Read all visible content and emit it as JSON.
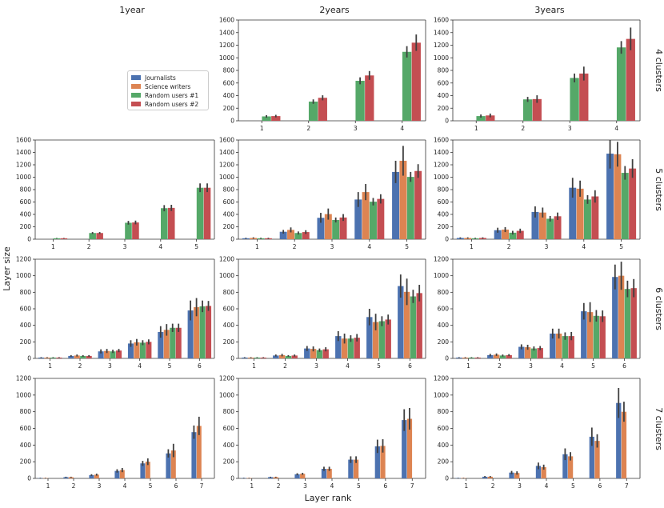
{
  "figure": {
    "xlabel": "Layer rank",
    "ylabel": "Layer size",
    "column_titles": [
      "1year",
      "2years",
      "3years"
    ],
    "row_titles": [
      "4 clusters",
      "5 clusters",
      "6 clusters",
      "7 clusters"
    ]
  },
  "legend": {
    "entries": [
      {
        "label": "Journalists",
        "color": "#4c72b0"
      },
      {
        "label": "Science writers",
        "color": "#dd8452"
      },
      {
        "label": "Random users #1",
        "color": "#55a868"
      },
      {
        "label": "Random users #2",
        "color": "#c44e52"
      }
    ]
  },
  "chart_data": [
    {
      "type": "bar",
      "row_title": "4 clusters",
      "col_title": "2years",
      "categories": [
        "1",
        "2",
        "3",
        "4"
      ],
      "ylim": [
        0,
        1600
      ],
      "yticks": [
        0,
        200,
        400,
        600,
        800,
        1000,
        1200,
        1400,
        1600
      ],
      "series": [
        {
          "name": "Random users #1",
          "values": [
            70,
            305,
            635,
            1095
          ],
          "err": [
            20,
            35,
            55,
            90
          ]
        },
        {
          "name": "Random users #2",
          "values": [
            75,
            365,
            720,
            1240
          ],
          "err": [
            20,
            40,
            70,
            130
          ]
        }
      ]
    },
    {
      "type": "bar",
      "row_title": "4 clusters",
      "col_title": "3years",
      "categories": [
        "1",
        "2",
        "3",
        "4"
      ],
      "ylim": [
        0,
        1600
      ],
      "yticks": [
        0,
        200,
        400,
        600,
        800,
        1000,
        1200,
        1400,
        1600
      ],
      "series": [
        {
          "name": "Random users #1",
          "values": [
            75,
            340,
            680,
            1165
          ],
          "err": [
            25,
            40,
            70,
            100
          ]
        },
        {
          "name": "Random users #2",
          "values": [
            85,
            345,
            750,
            1300
          ],
          "err": [
            30,
            60,
            110,
            180
          ]
        }
      ]
    },
    {
      "type": "bar",
      "row_title": "5 clusters",
      "col_title": "1year",
      "categories": [
        "1",
        "2",
        "3",
        "4",
        "5"
      ],
      "ylim": [
        0,
        1600
      ],
      "yticks": [
        0,
        200,
        400,
        600,
        800,
        1000,
        1200,
        1400,
        1600
      ],
      "series": [
        {
          "name": "Random users #1",
          "values": [
            15,
            100,
            265,
            500,
            830
          ],
          "err": [
            5,
            15,
            30,
            50,
            70
          ]
        },
        {
          "name": "Random users #2",
          "values": [
            15,
            100,
            270,
            505,
            830
          ],
          "err": [
            5,
            15,
            30,
            50,
            70
          ]
        }
      ]
    },
    {
      "type": "bar",
      "row_title": "5 clusters",
      "col_title": "2years",
      "categories": [
        "1",
        "2",
        "3",
        "4",
        "5"
      ],
      "ylim": [
        0,
        1600
      ],
      "yticks": [
        0,
        200,
        400,
        600,
        800,
        1000,
        1200,
        1400,
        1600
      ],
      "series": [
        {
          "name": "Journalists",
          "values": [
            15,
            120,
            345,
            640,
            1085
          ],
          "err": [
            8,
            30,
            80,
            120,
            180
          ]
        },
        {
          "name": "Science writers",
          "values": [
            20,
            150,
            405,
            760,
            1265
          ],
          "err": [
            10,
            40,
            90,
            130,
            240
          ]
        },
        {
          "name": "Random users #1",
          "values": [
            15,
            100,
            310,
            605,
            1005
          ],
          "err": [
            8,
            25,
            40,
            60,
            80
          ]
        },
        {
          "name": "Random users #2",
          "values": [
            15,
            115,
            350,
            650,
            1100
          ],
          "err": [
            8,
            30,
            55,
            75,
            110
          ]
        }
      ]
    },
    {
      "type": "bar",
      "row_title": "5 clusters",
      "col_title": "3years",
      "categories": [
        "1",
        "2",
        "3",
        "4",
        "5"
      ],
      "ylim": [
        0,
        1600
      ],
      "yticks": [
        0,
        200,
        400,
        600,
        800,
        1000,
        1200,
        1400,
        1600
      ],
      "series": [
        {
          "name": "Journalists",
          "values": [
            20,
            145,
            440,
            830,
            1380
          ],
          "err": [
            10,
            40,
            90,
            160,
            240
          ]
        },
        {
          "name": "Science writers",
          "values": [
            20,
            155,
            430,
            815,
            1370
          ],
          "err": [
            10,
            40,
            80,
            130,
            200
          ]
        },
        {
          "name": "Random users #1",
          "values": [
            15,
            105,
            330,
            640,
            1070
          ],
          "err": [
            8,
            30,
            45,
            70,
            110
          ]
        },
        {
          "name": "Random users #2",
          "values": [
            20,
            135,
            370,
            690,
            1140
          ],
          "err": [
            10,
            35,
            60,
            100,
            150
          ]
        }
      ]
    },
    {
      "type": "bar",
      "row_title": "6 clusters",
      "col_title": "1year",
      "categories": [
        "1",
        "2",
        "3",
        "4",
        "5",
        "6"
      ],
      "ylim": [
        0,
        1200
      ],
      "yticks": [
        0,
        200,
        400,
        600,
        800,
        1000,
        1200
      ],
      "series": [
        {
          "name": "Journalists",
          "values": [
            10,
            30,
            85,
            180,
            320,
            580
          ],
          "err": [
            5,
            10,
            25,
            40,
            70,
            120
          ]
        },
        {
          "name": "Science writers",
          "values": [
            10,
            35,
            90,
            195,
            345,
            620
          ],
          "err": [
            5,
            12,
            25,
            40,
            70,
            110
          ]
        },
        {
          "name": "Random users #1",
          "values": [
            10,
            30,
            85,
            190,
            370,
            630
          ],
          "err": [
            5,
            10,
            20,
            30,
            50,
            70
          ]
        },
        {
          "name": "Random users #2",
          "values": [
            10,
            30,
            95,
            200,
            370,
            635
          ],
          "err": [
            5,
            10,
            20,
            30,
            50,
            60
          ]
        }
      ]
    },
    {
      "type": "bar",
      "row_title": "6 clusters",
      "col_title": "2years",
      "categories": [
        "1",
        "2",
        "3",
        "4",
        "5",
        "6"
      ],
      "ylim": [
        0,
        1200
      ],
      "yticks": [
        0,
        200,
        400,
        600,
        800,
        1000,
        1200
      ],
      "series": [
        {
          "name": "Journalists",
          "values": [
            10,
            35,
            120,
            270,
            500,
            875
          ],
          "err": [
            5,
            12,
            30,
            60,
            100,
            140
          ]
        },
        {
          "name": "Science writers",
          "values": [
            10,
            40,
            115,
            240,
            440,
            805
          ],
          "err": [
            5,
            15,
            30,
            60,
            100,
            160
          ]
        },
        {
          "name": "Random users #1",
          "values": [
            10,
            30,
            100,
            240,
            450,
            750
          ],
          "err": [
            5,
            10,
            20,
            40,
            60,
            80
          ]
        },
        {
          "name": "Random users #2",
          "values": [
            10,
            35,
            110,
            250,
            470,
            790
          ],
          "err": [
            5,
            12,
            25,
            45,
            60,
            100
          ]
        }
      ]
    },
    {
      "type": "bar",
      "row_title": "6 clusters",
      "col_title": "3years",
      "categories": [
        "1",
        "2",
        "3",
        "4",
        "5",
        "6"
      ],
      "ylim": [
        0,
        1200
      ],
      "yticks": [
        0,
        200,
        400,
        600,
        800,
        1000,
        1200
      ],
      "series": [
        {
          "name": "Journalists",
          "values": [
            10,
            40,
            140,
            300,
            570,
            985
          ],
          "err": [
            5,
            15,
            30,
            60,
            100,
            150
          ]
        },
        {
          "name": "Science writers",
          "values": [
            10,
            45,
            135,
            300,
            560,
            1000
          ],
          "err": [
            5,
            15,
            30,
            60,
            120,
            170
          ]
        },
        {
          "name": "Random users #1",
          "values": [
            10,
            35,
            120,
            270,
            515,
            840
          ],
          "err": [
            5,
            12,
            25,
            45,
            70,
            100
          ]
        },
        {
          "name": "Random users #2",
          "values": [
            10,
            40,
            125,
            270,
            510,
            850
          ],
          "err": [
            5,
            12,
            25,
            50,
            70,
            110
          ]
        }
      ]
    },
    {
      "type": "bar",
      "row_title": "7 clusters",
      "col_title": "1year",
      "categories": [
        "1",
        "2",
        "3",
        "4",
        "5",
        "6",
        "7"
      ],
      "ylim": [
        0,
        1200
      ],
      "yticks": [
        0,
        200,
        400,
        600,
        800,
        1000,
        1200
      ],
      "series": [
        {
          "name": "Journalists",
          "values": [
            5,
            15,
            40,
            90,
            180,
            300,
            555
          ],
          "err": [
            3,
            5,
            10,
            20,
            30,
            50,
            80
          ]
        },
        {
          "name": "Science writers",
          "values": [
            5,
            15,
            45,
            100,
            200,
            335,
            630
          ],
          "err": [
            3,
            5,
            12,
            25,
            40,
            80,
            110
          ]
        }
      ]
    },
    {
      "type": "bar",
      "row_title": "7 clusters",
      "col_title": "2years",
      "categories": [
        "1",
        "2",
        "3",
        "4",
        "5",
        "6",
        "7"
      ],
      "ylim": [
        0,
        1200
      ],
      "yticks": [
        0,
        200,
        400,
        600,
        800,
        1000,
        1200
      ],
      "series": [
        {
          "name": "Journalists",
          "values": [
            5,
            15,
            50,
            115,
            225,
            385,
            700
          ],
          "err": [
            3,
            5,
            12,
            25,
            40,
            80,
            130
          ]
        },
        {
          "name": "Science writers",
          "values": [
            5,
            15,
            55,
            115,
            225,
            390,
            715
          ],
          "err": [
            3,
            5,
            12,
            25,
            40,
            80,
            130
          ]
        }
      ]
    },
    {
      "type": "bar",
      "row_title": "7 clusters",
      "col_title": "3years",
      "categories": [
        "1",
        "2",
        "3",
        "4",
        "5",
        "6",
        "7"
      ],
      "ylim": [
        0,
        1200
      ],
      "yticks": [
        0,
        200,
        400,
        600,
        800,
        1000,
        1200
      ],
      "series": [
        {
          "name": "Journalists",
          "values": [
            5,
            20,
            70,
            150,
            290,
            500,
            905
          ],
          "err": [
            3,
            8,
            20,
            40,
            70,
            110,
            180
          ]
        },
        {
          "name": "Science writers",
          "values": [
            5,
            20,
            65,
            135,
            265,
            450,
            800
          ],
          "err": [
            3,
            8,
            20,
            30,
            50,
            80,
            120
          ]
        }
      ]
    }
  ]
}
